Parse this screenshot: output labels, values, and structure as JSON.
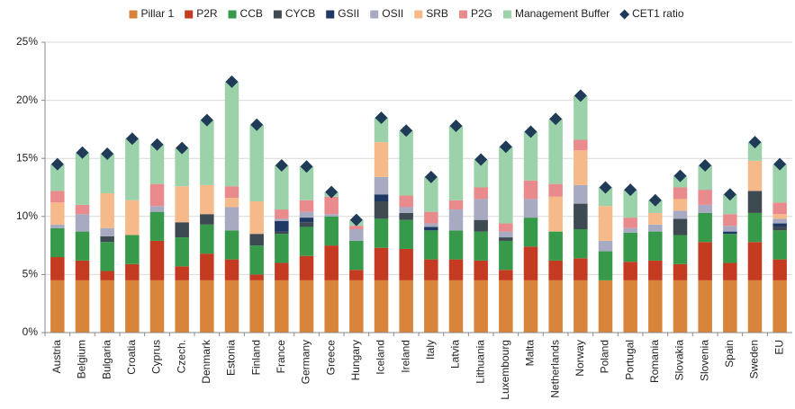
{
  "chart_data": {
    "type": "stacked_bar",
    "categories": [
      "Austria",
      "Belgium",
      "Bulgaria",
      "Croatia",
      "Cyprus",
      "Czech.",
      "Denmark",
      "Estonia",
      "Finland",
      "France",
      "Germany",
      "Greece",
      "Hungary",
      "Iceland",
      "Ireland",
      "Italy",
      "Latvia",
      "Lithuania",
      "Luxembourg",
      "Malta",
      "Netherlands",
      "Norway",
      "Poland",
      "Portugal",
      "Romania",
      "Slovakia",
      "Slovenia",
      "Spain",
      "Sweden",
      "EU"
    ],
    "series": [
      {
        "name": "Pillar 1",
        "color": "#d9843b",
        "values": [
          4.5,
          4.5,
          4.5,
          4.5,
          4.5,
          4.5,
          4.5,
          4.5,
          4.5,
          4.5,
          4.5,
          4.5,
          4.5,
          4.5,
          4.5,
          4.5,
          4.5,
          4.5,
          4.5,
          4.5,
          4.5,
          4.5,
          4.5,
          4.5,
          4.5,
          4.5,
          4.5,
          4.5,
          4.5,
          4.5
        ]
      },
      {
        "name": "P2R",
        "color": "#c43b22",
        "values": [
          2.0,
          1.7,
          0.8,
          1.4,
          3.4,
          1.2,
          2.3,
          1.8,
          0.5,
          1.5,
          2.1,
          3.0,
          0.9,
          2.8,
          2.7,
          1.8,
          1.8,
          1.7,
          0.9,
          2.9,
          1.7,
          1.9,
          0,
          1.6,
          1.7,
          1.4,
          3.3,
          1.5,
          3.3,
          1.8
        ]
      },
      {
        "name": "CCB",
        "color": "#379a4b",
        "values": [
          2.5,
          2.5,
          2.5,
          2.5,
          2.5,
          2.5,
          2.5,
          2.5,
          2.5,
          2.5,
          2.5,
          2.5,
          2.5,
          2.5,
          2.5,
          2.5,
          2.5,
          2.5,
          2.5,
          2.5,
          2.5,
          2.5,
          2.5,
          2.5,
          2.5,
          2.5,
          2.5,
          2.5,
          2.5,
          2.5
        ]
      },
      {
        "name": "CYCB",
        "color": "#3e4a52",
        "values": [
          0,
          0,
          0.5,
          0,
          0,
          1.3,
          0.9,
          0,
          1.0,
          0.2,
          0.4,
          0,
          0,
          1.5,
          0.6,
          0,
          0,
          1.0,
          0.3,
          0,
          0,
          2.2,
          0,
          0,
          0,
          1.4,
          0,
          0,
          1.9,
          0.3
        ]
      },
      {
        "name": "GSII",
        "color": "#1f3864",
        "values": [
          0,
          0,
          0,
          0,
          0,
          0,
          0,
          0,
          0,
          0.9,
          0.4,
          0,
          0,
          0.6,
          0,
          0.3,
          0,
          0,
          0,
          0,
          0,
          0,
          0,
          0,
          0,
          0,
          0,
          0.2,
          0,
          0.3
        ]
      },
      {
        "name": "OSII",
        "color": "#a7aac0",
        "values": [
          0.3,
          1.5,
          0.7,
          0,
          0.5,
          0,
          0,
          2.0,
          0,
          0.2,
          0.5,
          0.2,
          1.0,
          1.5,
          0.5,
          0.3,
          1.8,
          1.8,
          0.5,
          1.6,
          0,
          1.6,
          0.9,
          0.4,
          0.6,
          0.7,
          0.7,
          0.5,
          0,
          0.4
        ]
      },
      {
        "name": "SRB",
        "color": "#f6b98a",
        "values": [
          1.9,
          0,
          3.0,
          3.0,
          0,
          3.1,
          2.5,
          0.8,
          2.8,
          0,
          0,
          0,
          0,
          3.0,
          0,
          0,
          0,
          0,
          0,
          0,
          3.0,
          3.0,
          3.0,
          0,
          1.0,
          1.0,
          0,
          0,
          2.6,
          0.4
        ]
      },
      {
        "name": "P2G",
        "color": "#e98b8c",
        "values": [
          1.0,
          0.8,
          0,
          0,
          1.9,
          0,
          0,
          1.0,
          0,
          0.8,
          1.0,
          1.5,
          0.3,
          0,
          1.0,
          1.0,
          0.8,
          1.0,
          0.7,
          1.6,
          1.1,
          0.9,
          0,
          0.9,
          0,
          1.0,
          1.3,
          1.0,
          0,
          1.0
        ]
      },
      {
        "name": "Management Buffer",
        "color": "#9bd2aa",
        "values": [
          2.3,
          4.5,
          3.4,
          5.3,
          3.4,
          3.3,
          5.6,
          9.0,
          6.6,
          3.8,
          2.9,
          0.4,
          0.5,
          2.1,
          5.6,
          3.0,
          6.4,
          2.4,
          6.6,
          4.2,
          5.6,
          3.8,
          1.6,
          2.4,
          1.1,
          1.0,
          2.1,
          1.7,
          1.6,
          3.3
        ]
      }
    ],
    "markers": {
      "name": "CET1 ratio",
      "color": "#1f3b57",
      "values": [
        14.5,
        15.5,
        15.4,
        16.7,
        16.2,
        15.9,
        18.3,
        21.6,
        17.9,
        14.4,
        14.3,
        12.1,
        9.7,
        18.5,
        17.4,
        13.4,
        17.8,
        14.9,
        16.0,
        17.3,
        18.4,
        20.4,
        12.5,
        12.3,
        11.4,
        13.5,
        14.4,
        11.9,
        16.4,
        14.5
      ]
    },
    "ylim": [
      0,
      25
    ],
    "yticks": [
      {
        "value": 0,
        "label": "0%"
      },
      {
        "value": 5,
        "label": "5%"
      },
      {
        "value": 10,
        "label": "10%"
      },
      {
        "value": 15,
        "label": "15%"
      },
      {
        "value": 20,
        "label": "20%"
      },
      {
        "value": 25,
        "label": "25%"
      }
    ],
    "grid": true,
    "legend": "top"
  }
}
